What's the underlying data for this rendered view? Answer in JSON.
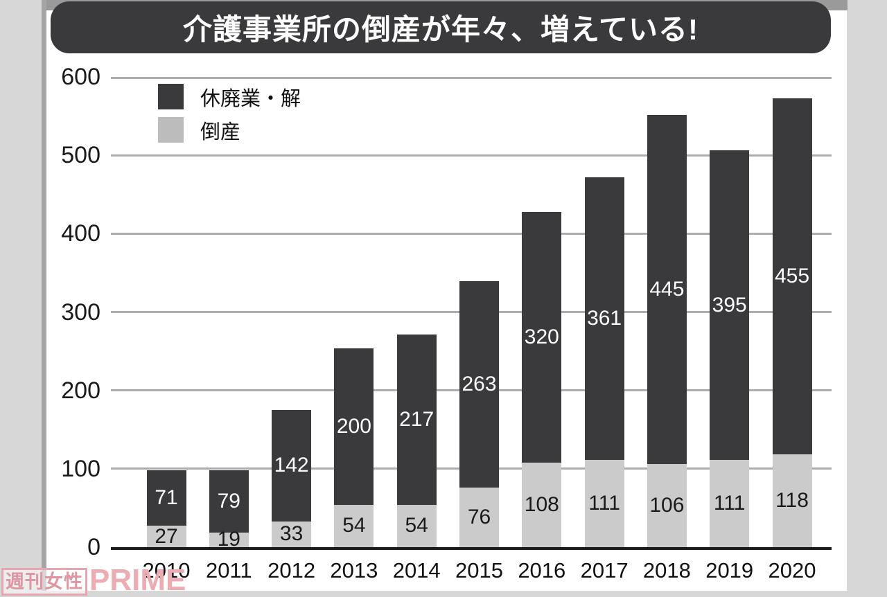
{
  "header": {
    "title": "介護事業所の倒産が年々、増えている!"
  },
  "legend": {
    "items": [
      {
        "label": "休廃業・解",
        "color": "#3a3a3c"
      },
      {
        "label": "倒産",
        "color": "#bcbcbc"
      }
    ]
  },
  "watermark": {
    "boxed_text": "週刊女性",
    "brand_text": "PRIME",
    "color": "#ecacb4"
  },
  "colors": {
    "dark_segment": "#3a3a3c",
    "light_segment": "#cbcbcb",
    "gridline": "#adadad",
    "axis_line": "#1a1a1a",
    "page_margin": "#d7d7d7",
    "top_strip": "#9a9a9a",
    "title_bg": "#3a3a3c",
    "title_text": "#ffffff"
  },
  "chart_data": {
    "type": "bar",
    "stacked": true,
    "title": "介護事業所の倒産が年々、増えている!",
    "xlabel": "",
    "ylabel": "",
    "categories": [
      "2010",
      "2011",
      "2012",
      "2013",
      "2014",
      "2015",
      "2016",
      "2017",
      "2018",
      "2019",
      "2020"
    ],
    "series": [
      {
        "name": "倒産",
        "stack_position": "bottom",
        "color": "#cbcbcb",
        "label_color": "#1a1a1a",
        "values": [
          27,
          19,
          33,
          54,
          54,
          76,
          108,
          111,
          106,
          111,
          118
        ]
      },
      {
        "name": "休廃業・解",
        "stack_position": "top",
        "color": "#3a3a3c",
        "label_color": "#ffffff",
        "values": [
          71,
          79,
          142,
          200,
          217,
          263,
          320,
          361,
          445,
          395,
          455
        ]
      }
    ],
    "totals": [
      98,
      98,
      175,
      254,
      271,
      339,
      428,
      472,
      551,
      506,
      573
    ],
    "ylim": [
      0,
      600
    ],
    "yticks": [
      0,
      100,
      200,
      300,
      400,
      500,
      600
    ],
    "grid": true,
    "legend_position": "top-left",
    "value_labels": "inside"
  }
}
